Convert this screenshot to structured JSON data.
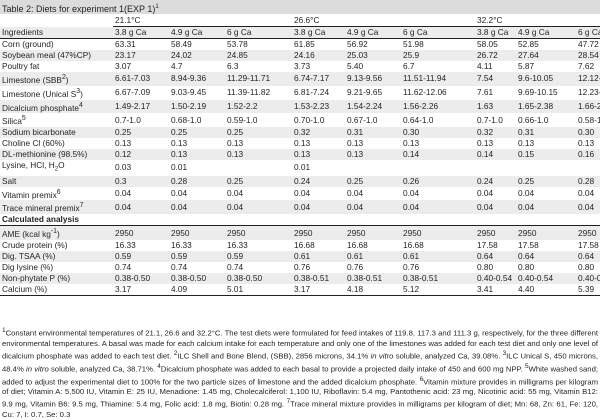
{
  "title": "Table 2: Diets for experiment 1(EXP 1)",
  "title_sup": "1",
  "temperatures": [
    "21.1°C",
    "26.6°C",
    "32.2°C"
  ],
  "header": {
    "ingredients": "Ingredients",
    "ca_levels": [
      "3.8 g Ca",
      "4.9 g Ca",
      "6 g Ca",
      "3.8 g Ca",
      "4.9 g Ca",
      "6 g Ca",
      "3.8 g Ca",
      "4.9 g Ca",
      "6 g Ca"
    ]
  },
  "rows": [
    {
      "label": "Corn (ground)",
      "values": [
        "63.31",
        "58.49",
        "53.78",
        "61.85",
        "56.92",
        "51.98",
        "58.05",
        "52.85",
        "47.72"
      ]
    },
    {
      "label": "Soybean meal (47%CP)",
      "values": [
        "23.17",
        "24.02",
        "24.85",
        "24.16",
        "25.03",
        "25.9",
        "26.72",
        "27.64",
        "28.54"
      ]
    },
    {
      "label": "Poultry fat",
      "values": [
        "3.07",
        "4.7",
        "6.3",
        "3.73",
        "5.40",
        "6.7",
        "4.11",
        "5.87",
        "7.62"
      ]
    },
    {
      "label": "Limestone (SBB",
      "sup": "2",
      "label_after": ")",
      "values": [
        "6.61-7.03",
        "8.94-9.36",
        "11.29-11.71",
        "6.74-7.17",
        "9.13-9.56",
        "11.51-11.94",
        "7.54",
        "9.6-10.05",
        "12.12-12.57"
      ]
    },
    {
      "label": "Limestone (Unical S",
      "sup": "3",
      "label_after": ")",
      "values": [
        "6.67-7.09",
        "9.03-9.45",
        "11.39-11.82",
        "6.81-7.24",
        "9.21-9.65",
        "11.62-12.06",
        "7.61",
        "9.69-10.15",
        "12.23-12.69"
      ]
    },
    {
      "label": "Dicalcium phosphate",
      "sup": "4",
      "values": [
        "1.49-2.17",
        "1.50-2.19",
        "1.52-2.2",
        "1.53-2.23",
        "1.54-2.24",
        "1.56-2.26",
        "1.63",
        "1.65-2.38",
        "1.66-2.4"
      ]
    },
    {
      "label": "Silica",
      "sup": "5",
      "values": [
        "0.7-1.0",
        "0.68-1.0",
        "0.59-1.0",
        "0.70-1.0",
        "0.67-1.0",
        "0.64-1.0",
        "0.7-1.0",
        "0.66-1.0",
        "0.58-1.0"
      ]
    },
    {
      "label": "Sodium bicarbonate",
      "values": [
        "0.25",
        "0.25",
        "0.25",
        "0.32",
        "0.31",
        "0.30",
        "0.32",
        "0.31",
        "0.30"
      ]
    },
    {
      "label": "Choline Cl (60%)",
      "values": [
        "0.13",
        "0.13",
        "0.13",
        "0.13",
        "0.13",
        "0.13",
        "0.13",
        "0.13",
        "0.13"
      ]
    },
    {
      "label": "DL-methionine (98.5%)",
      "values": [
        "0.12",
        "0.13",
        "0.13",
        "0.13",
        "0.13",
        "0.14",
        "0.14",
        "0.15",
        "0.16"
      ]
    },
    {
      "label": "Lysine, HCl, H",
      "sub": "2",
      "label_after": "O",
      "values": [
        "0.03",
        "0.01",
        "",
        "0.01",
        "",
        "",
        "",
        "",
        ""
      ]
    },
    {
      "label": "Salt",
      "values": [
        "0.3",
        "0.28",
        "0.25",
        "0.24",
        "0.25",
        "0.26",
        "0.24",
        "0.25",
        "0.28"
      ]
    },
    {
      "label": "Vitamin premix",
      "sup": "6",
      "values": [
        "0.04",
        "0.04",
        "0.04",
        "0.04",
        "0.04",
        "0.04",
        "0.04",
        "0.04",
        "0.04"
      ]
    },
    {
      "label": "Trace mineral premix",
      "sup": "7",
      "values": [
        "0.04",
        "0.04",
        "0.04",
        "0.04",
        "0.04",
        "0.04",
        "0.04",
        "0.04",
        "0.04"
      ]
    }
  ],
  "calc_header": "Calculated analysis",
  "calc_rows": [
    {
      "label": "AME (kcal kg",
      "sup": "-1",
      "label_after": ")",
      "values": [
        "2950",
        "2950",
        "2950",
        "2950",
        "2950",
        "2950",
        "2950",
        "2950",
        "2950"
      ]
    },
    {
      "label": "Crude protein (%)",
      "values": [
        "16.33",
        "16.33",
        "16.33",
        "16.68",
        "16.68",
        "16.68",
        "17.58",
        "17.58",
        "17.58"
      ]
    },
    {
      "label": "Dig. TSAA (%)",
      "values": [
        "0.59",
        "0.59",
        "0.59",
        "0.61",
        "0.61",
        "0.61",
        "0.64",
        "0.64",
        "0.64"
      ]
    },
    {
      "label": "Dig lysine (%)",
      "values": [
        "0.74",
        "0.74",
        "0.74",
        "0.76",
        "0.76",
        "0.76",
        "0.80",
        "0.80",
        "0.80"
      ]
    },
    {
      "label": "Non-phytate P (%)",
      "values": [
        "0.38-0.50",
        "0.38-0.50",
        "0.38-0.50",
        "0.38-0.51",
        "0.38-0.51",
        "0.38-0.51",
        "0.40-0.54",
        "0.40-0.54",
        "0.40-0.54"
      ]
    },
    {
      "label": "Calcium (%)",
      "values": [
        "3.17",
        "4.09",
        "5.01",
        "3.17",
        "4.18",
        "5.12",
        "3.41",
        "4.40",
        "5.39"
      ]
    }
  ],
  "footnotes": {
    "p1_a": "1",
    "p1_b": "Constant environmental temperatures of 21.1, 26.6 and 32.2°C. The test diets were formulated for feed intakes of 119.8, 117.3 and 111.3 g, respectively, for the three different environmental temperatures. A basal was made for each calcium intake for each temperature and only one of the limestones was added for each test diet and only one level of dicalcium phosphate was added to each test diet. ",
    "p1_c": "2",
    "p1_d": "ILC Shell and Bone Blend, (SBB), 2856 microns, 34.1% ",
    "p1_e": "in vitro",
    "p1_f": " soluble, analyzed Ca, 39.08%. ",
    "p1_g": "3",
    "p1_h": "ILC Unical S, 450 microns, 48.4% ",
    "p1_i": "in vitro",
    "p1_j": " soluble, analyzed Ca, 38.71%. ",
    "p1_k": "4",
    "p1_l": "Dicalcium phosphate was added to each basal to provide a projected daily intake of 450 and 600 mg NPP. ",
    "p1_m": "5",
    "p1_n": "White washed sand; added to adjust the experimental diet to 100% for the two particle sizes of limestone and the added dicalcium phosphate. ",
    "p1_o": "6",
    "p1_p": "Vitamin mixture provides in milligrams per kilogram of diet; Vitamin A: 5,500 IU, Vitamin E: 25 IU, Menadione: 1.45 mg, Cholecalciferol: 1,100 IU, Riboflavin: 5.4 mg, Pantothenic acid: 23 mg, Nicotinic acid: 55 mg, Vitamin B12: 9.9 mg, Vitamin B6: 9.5 mg, Thiamine: 5.4 mg, Folic acid: 1.8 mg, Biotin: 0.28 mg. ",
    "p1_q": "7",
    "p1_r": "Trace mineral mixture provides in milligrams per kilogram of diet; Mn: 68, Zn: 61, Fe: 120, Cu: 7, I: 0.7, Se: 0.3"
  }
}
